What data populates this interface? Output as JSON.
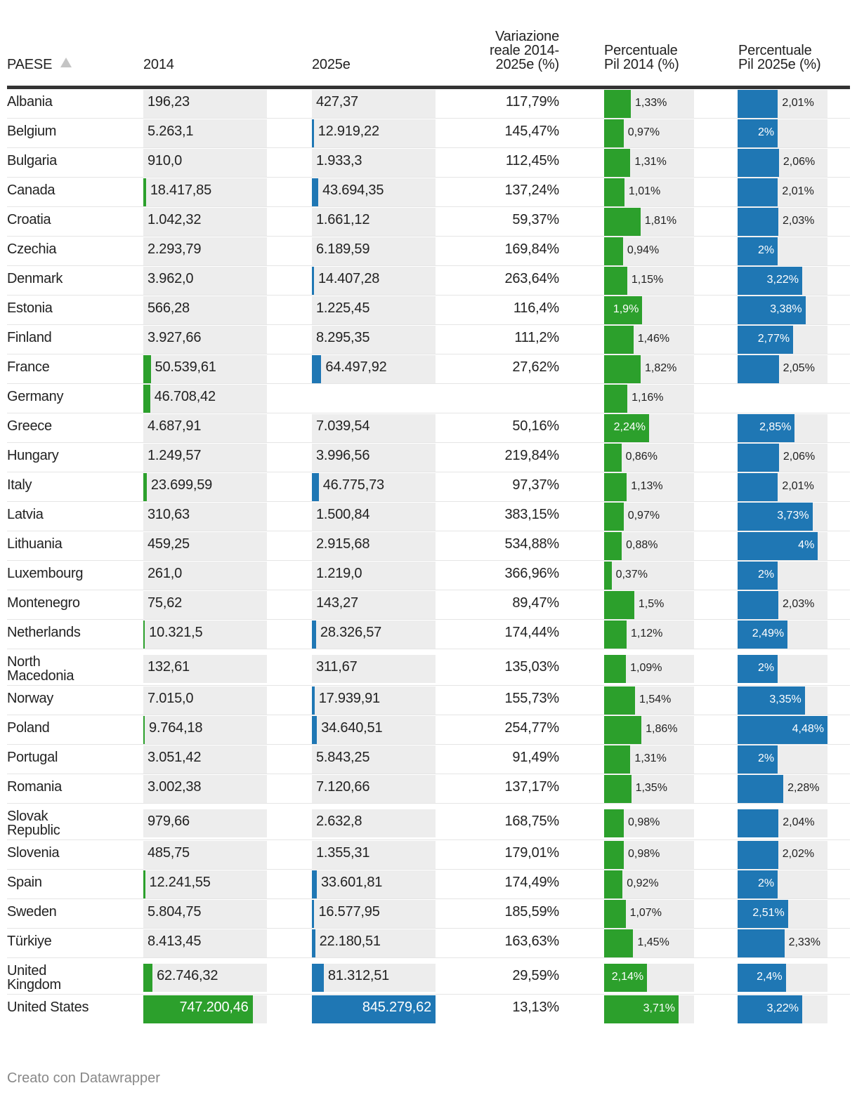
{
  "chart_data": {
    "type": "table",
    "columns": {
      "country": "PAESE",
      "v2014": "2014",
      "v2025": "2025e",
      "variation": "Variazione reale 2014-2025e (%)",
      "variation_lines": [
        "Variazione",
        "reale 2014-",
        "2025e (%)"
      ],
      "pct2014": "Percentuale Pil 2014 (%)",
      "pct2014_lines": [
        "Percentuale",
        "Pil 2014 (%)"
      ],
      "pct2025": "Percentuale Pil 2025e (%)",
      "pct2025_lines": [
        "Percentuale",
        "Pil 2025e (%)"
      ]
    },
    "sort": "country ascending",
    "colors": {
      "green": "#2ca02c",
      "blue": "#1f77b4",
      "cell_bg": "#ededed"
    },
    "scales": {
      "value_max": 845279.62,
      "pct_max": 4.48
    },
    "rows": [
      {
        "country": "Albania",
        "lines": [
          "Albania"
        ],
        "v2014": 196.23,
        "v2014_text": "196,23",
        "v2025": 427.37,
        "v2025_text": "427,37",
        "variation": "117,79%",
        "pct2014": 1.33,
        "pct2014_text": "1,33%",
        "pct2025": 2.01,
        "pct2025_text": "2,01%"
      },
      {
        "country": "Belgium",
        "lines": [
          "Belgium"
        ],
        "v2014": 5263.1,
        "v2014_text": "5.263,1",
        "v2025": 12919.22,
        "v2025_text": "12.919,22",
        "variation": "145,47%",
        "pct2014": 0.97,
        "pct2014_text": "0,97%",
        "pct2025": 2.0,
        "pct2025_text": "2%"
      },
      {
        "country": "Bulgaria",
        "lines": [
          "Bulgaria"
        ],
        "v2014": 910.0,
        "v2014_text": "910,0",
        "v2025": 1933.3,
        "v2025_text": "1.933,3",
        "variation": "112,45%",
        "pct2014": 1.31,
        "pct2014_text": "1,31%",
        "pct2025": 2.06,
        "pct2025_text": "2,06%"
      },
      {
        "country": "Canada",
        "lines": [
          "Canada"
        ],
        "v2014": 18417.85,
        "v2014_text": "18.417,85",
        "v2025": 43694.35,
        "v2025_text": "43.694,35",
        "variation": "137,24%",
        "pct2014": 1.01,
        "pct2014_text": "1,01%",
        "pct2025": 2.01,
        "pct2025_text": "2,01%"
      },
      {
        "country": "Croatia",
        "lines": [
          "Croatia"
        ],
        "v2014": 1042.32,
        "v2014_text": "1.042,32",
        "v2025": 1661.12,
        "v2025_text": "1.661,12",
        "variation": "59,37%",
        "pct2014": 1.81,
        "pct2014_text": "1,81%",
        "pct2025": 2.03,
        "pct2025_text": "2,03%"
      },
      {
        "country": "Czechia",
        "lines": [
          "Czechia"
        ],
        "v2014": 2293.79,
        "v2014_text": "2.293,79",
        "v2025": 6189.59,
        "v2025_text": "6.189,59",
        "variation": "169,84%",
        "pct2014": 0.94,
        "pct2014_text": "0,94%",
        "pct2025": 2.0,
        "pct2025_text": "2%"
      },
      {
        "country": "Denmark",
        "lines": [
          "Denmark"
        ],
        "v2014": 3962.0,
        "v2014_text": "3.962,0",
        "v2025": 14407.28,
        "v2025_text": "14.407,28",
        "variation": "263,64%",
        "pct2014": 1.15,
        "pct2014_text": "1,15%",
        "pct2025": 3.22,
        "pct2025_text": "3,22%"
      },
      {
        "country": "Estonia",
        "lines": [
          "Estonia"
        ],
        "v2014": 566.28,
        "v2014_text": "566,28",
        "v2025": 1225.45,
        "v2025_text": "1.225,45",
        "variation": "116,4%",
        "pct2014": 1.9,
        "pct2014_text": "1,9%",
        "pct2025": 3.38,
        "pct2025_text": "3,38%"
      },
      {
        "country": "Finland",
        "lines": [
          "Finland"
        ],
        "v2014": 3927.66,
        "v2014_text": "3.927,66",
        "v2025": 8295.35,
        "v2025_text": "8.295,35",
        "variation": "111,2%",
        "pct2014": 1.46,
        "pct2014_text": "1,46%",
        "pct2025": 2.77,
        "pct2025_text": "2,77%"
      },
      {
        "country": "France",
        "lines": [
          "France"
        ],
        "v2014": 50539.61,
        "v2014_text": "50.539,61",
        "v2025": 64497.92,
        "v2025_text": "64.497,92",
        "variation": "27,62%",
        "pct2014": 1.82,
        "pct2014_text": "1,82%",
        "pct2025": 2.05,
        "pct2025_text": "2,05%"
      },
      {
        "country": "Germany",
        "lines": [
          "Germany"
        ],
        "v2014": 46708.42,
        "v2014_text": "46.708,42",
        "v2025": null,
        "v2025_text": "",
        "variation": "",
        "pct2014": 1.16,
        "pct2014_text": "1,16%",
        "pct2025": null,
        "pct2025_text": ""
      },
      {
        "country": "Greece",
        "lines": [
          "Greece"
        ],
        "v2014": 4687.91,
        "v2014_text": "4.687,91",
        "v2025": 7039.54,
        "v2025_text": "7.039,54",
        "variation": "50,16%",
        "pct2014": 2.24,
        "pct2014_text": "2,24%",
        "pct2025": 2.85,
        "pct2025_text": "2,85%"
      },
      {
        "country": "Hungary",
        "lines": [
          "Hungary"
        ],
        "v2014": 1249.57,
        "v2014_text": "1.249,57",
        "v2025": 3996.56,
        "v2025_text": "3.996,56",
        "variation": "219,84%",
        "pct2014": 0.86,
        "pct2014_text": "0,86%",
        "pct2025": 2.06,
        "pct2025_text": "2,06%"
      },
      {
        "country": "Italy",
        "lines": [
          "Italy"
        ],
        "v2014": 23699.59,
        "v2014_text": "23.699,59",
        "v2025": 46775.73,
        "v2025_text": "46.775,73",
        "variation": "97,37%",
        "pct2014": 1.13,
        "pct2014_text": "1,13%",
        "pct2025": 2.01,
        "pct2025_text": "2,01%"
      },
      {
        "country": "Latvia",
        "lines": [
          "Latvia"
        ],
        "v2014": 310.63,
        "v2014_text": "310,63",
        "v2025": 1500.84,
        "v2025_text": "1.500,84",
        "variation": "383,15%",
        "pct2014": 0.97,
        "pct2014_text": "0,97%",
        "pct2025": 3.73,
        "pct2025_text": "3,73%"
      },
      {
        "country": "Lithuania",
        "lines": [
          "Lithuania"
        ],
        "v2014": 459.25,
        "v2014_text": "459,25",
        "v2025": 2915.68,
        "v2025_text": "2.915,68",
        "variation": "534,88%",
        "pct2014": 0.88,
        "pct2014_text": "0,88%",
        "pct2025": 4.0,
        "pct2025_text": "4%"
      },
      {
        "country": "Luxembourg",
        "lines": [
          "Luxembourg"
        ],
        "v2014": 261.0,
        "v2014_text": "261,0",
        "v2025": 1219.0,
        "v2025_text": "1.219,0",
        "variation": "366,96%",
        "pct2014": 0.37,
        "pct2014_text": "0,37%",
        "pct2025": 2.0,
        "pct2025_text": "2%"
      },
      {
        "country": "Montenegro",
        "lines": [
          "Montenegro"
        ],
        "v2014": 75.62,
        "v2014_text": "75,62",
        "v2025": 143.27,
        "v2025_text": "143,27",
        "variation": "89,47%",
        "pct2014": 1.5,
        "pct2014_text": "1,5%",
        "pct2025": 2.03,
        "pct2025_text": "2,03%"
      },
      {
        "country": "Netherlands",
        "lines": [
          "Netherlands"
        ],
        "v2014": 10321.5,
        "v2014_text": "10.321,5",
        "v2025": 28326.57,
        "v2025_text": "28.326,57",
        "variation": "174,44%",
        "pct2014": 1.12,
        "pct2014_text": "1,12%",
        "pct2025": 2.49,
        "pct2025_text": "2,49%"
      },
      {
        "country": "North Macedonia",
        "lines": [
          "North",
          "Macedonia"
        ],
        "v2014": 132.61,
        "v2014_text": "132,61",
        "v2025": 311.67,
        "v2025_text": "311,67",
        "variation": "135,03%",
        "pct2014": 1.09,
        "pct2014_text": "1,09%",
        "pct2025": 2.0,
        "pct2025_text": "2%"
      },
      {
        "country": "Norway",
        "lines": [
          "Norway"
        ],
        "v2014": 7015.0,
        "v2014_text": "7.015,0",
        "v2025": 17939.91,
        "v2025_text": "17.939,91",
        "variation": "155,73%",
        "pct2014": 1.54,
        "pct2014_text": "1,54%",
        "pct2025": 3.35,
        "pct2025_text": "3,35%"
      },
      {
        "country": "Poland",
        "lines": [
          "Poland"
        ],
        "v2014": 9764.18,
        "v2014_text": "9.764,18",
        "v2025": 34640.51,
        "v2025_text": "34.640,51",
        "variation": "254,77%",
        "pct2014": 1.86,
        "pct2014_text": "1,86%",
        "pct2025": 4.48,
        "pct2025_text": "4,48%"
      },
      {
        "country": "Portugal",
        "lines": [
          "Portugal"
        ],
        "v2014": 3051.42,
        "v2014_text": "3.051,42",
        "v2025": 5843.25,
        "v2025_text": "5.843,25",
        "variation": "91,49%",
        "pct2014": 1.31,
        "pct2014_text": "1,31%",
        "pct2025": 2.0,
        "pct2025_text": "2%"
      },
      {
        "country": "Romania",
        "lines": [
          "Romania"
        ],
        "v2014": 3002.38,
        "v2014_text": "3.002,38",
        "v2025": 7120.66,
        "v2025_text": "7.120,66",
        "variation": "137,17%",
        "pct2014": 1.35,
        "pct2014_text": "1,35%",
        "pct2025": 2.28,
        "pct2025_text": "2,28%"
      },
      {
        "country": "Slovak Republic",
        "lines": [
          "Slovak",
          "Republic"
        ],
        "v2014": 979.66,
        "v2014_text": "979,66",
        "v2025": 2632.8,
        "v2025_text": "2.632,8",
        "variation": "168,75%",
        "pct2014": 0.98,
        "pct2014_text": "0,98%",
        "pct2025": 2.04,
        "pct2025_text": "2,04%"
      },
      {
        "country": "Slovenia",
        "lines": [
          "Slovenia"
        ],
        "v2014": 485.75,
        "v2014_text": "485,75",
        "v2025": 1355.31,
        "v2025_text": "1.355,31",
        "variation": "179,01%",
        "pct2014": 0.98,
        "pct2014_text": "0,98%",
        "pct2025": 2.02,
        "pct2025_text": "2,02%"
      },
      {
        "country": "Spain",
        "lines": [
          "Spain"
        ],
        "v2014": 12241.55,
        "v2014_text": "12.241,55",
        "v2025": 33601.81,
        "v2025_text": "33.601,81",
        "variation": "174,49%",
        "pct2014": 0.92,
        "pct2014_text": "0,92%",
        "pct2025": 2.0,
        "pct2025_text": "2%"
      },
      {
        "country": "Sweden",
        "lines": [
          "Sweden"
        ],
        "v2014": 5804.75,
        "v2014_text": "5.804,75",
        "v2025": 16577.95,
        "v2025_text": "16.577,95",
        "variation": "185,59%",
        "pct2014": 1.07,
        "pct2014_text": "1,07%",
        "pct2025": 2.51,
        "pct2025_text": "2,51%"
      },
      {
        "country": "Türkiye",
        "lines": [
          "Türkiye"
        ],
        "v2014": 8413.45,
        "v2014_text": "8.413,45",
        "v2025": 22180.51,
        "v2025_text": "22.180,51",
        "variation": "163,63%",
        "pct2014": 1.45,
        "pct2014_text": "1,45%",
        "pct2025": 2.33,
        "pct2025_text": "2,33%"
      },
      {
        "country": "United Kingdom",
        "lines": [
          "United",
          "Kingdom"
        ],
        "v2014": 62746.32,
        "v2014_text": "62.746,32",
        "v2025": 81312.51,
        "v2025_text": "81.312,51",
        "variation": "29,59%",
        "pct2014": 2.14,
        "pct2014_text": "2,14%",
        "pct2025": 2.4,
        "pct2025_text": "2,4%"
      },
      {
        "country": "United States",
        "lines": [
          "United States"
        ],
        "v2014": 747200.46,
        "v2014_text": "747.200,46",
        "v2025": 845279.62,
        "v2025_text": "845.279,62",
        "variation": "13,13%",
        "pct2014": 3.71,
        "pct2014_text": "3,71%",
        "pct2025": 3.22,
        "pct2025_text": "3,22%"
      }
    ]
  },
  "footer": {
    "credit": "Creato con Datawrapper"
  }
}
